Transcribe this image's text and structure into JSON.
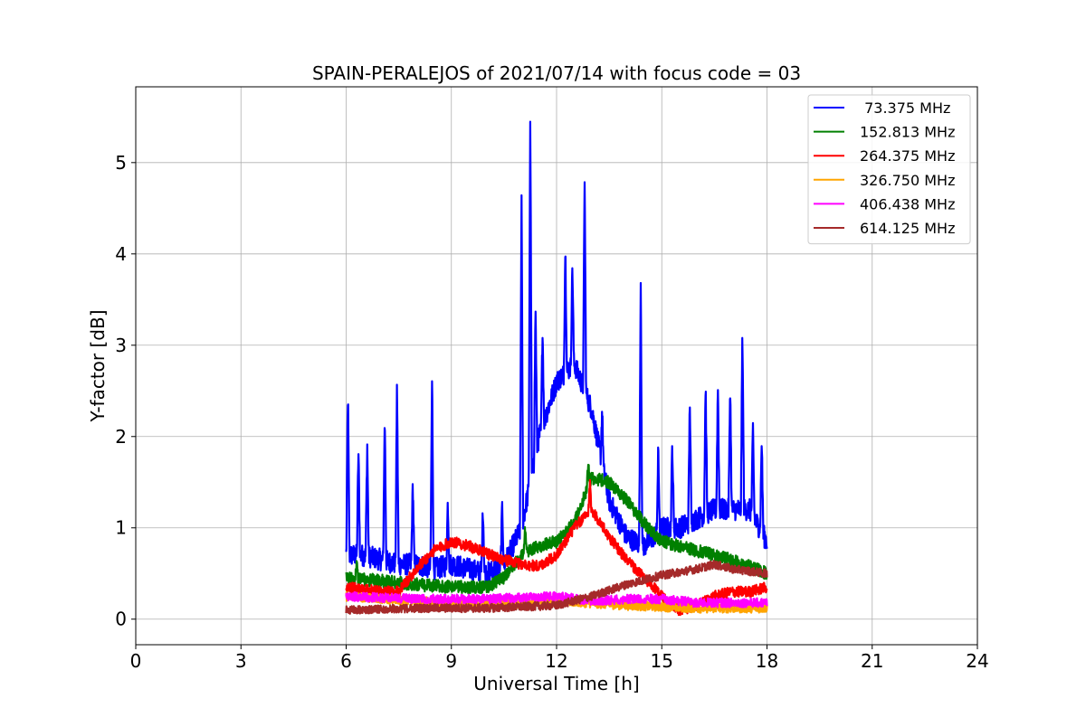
{
  "chart_data": {
    "type": "line",
    "title": "SPAIN-PERALEJOS of 2021/07/14 with focus code = 03",
    "xlabel": "Universal Time [h]",
    "ylabel": "Y-factor [dB]",
    "xlim": [
      0,
      24
    ],
    "ylim": [
      -0.28,
      5.83
    ],
    "xticks": [
      0,
      3,
      6,
      9,
      12,
      15,
      18,
      21,
      24
    ],
    "yticks": [
      0,
      1,
      2,
      3,
      4,
      5
    ],
    "grid": true,
    "legend_position": "top-right",
    "series": [
      {
        "name": " 73.375 MHz",
        "color": "#0000ff",
        "noise": 0.12,
        "x": [
          6.0,
          6.5,
          7.0,
          7.5,
          8.0,
          8.5,
          9.0,
          9.5,
          10.0,
          10.5,
          11.0,
          11.5,
          12.0,
          12.5,
          13.0,
          13.5,
          14.0,
          14.5,
          15.0,
          15.5,
          16.0,
          16.5,
          17.0,
          17.5,
          18.0
        ],
        "y": [
          0.7,
          0.7,
          0.65,
          0.6,
          0.6,
          0.55,
          0.6,
          0.55,
          0.5,
          0.6,
          1.0,
          2.0,
          2.6,
          2.8,
          2.3,
          1.3,
          0.9,
          0.8,
          1.0,
          1.0,
          1.1,
          1.2,
          1.2,
          1.2,
          0.85
        ],
        "spikes": [
          [
            6.05,
            2.5
          ],
          [
            6.35,
            1.85
          ],
          [
            6.6,
            1.9
          ],
          [
            7.1,
            2.25
          ],
          [
            7.45,
            2.6
          ],
          [
            7.9,
            1.5
          ],
          [
            8.45,
            2.65
          ],
          [
            8.9,
            1.3
          ],
          [
            9.9,
            1.25
          ],
          [
            10.45,
            1.25
          ],
          [
            11.0,
            4.6
          ],
          [
            11.25,
            5.55
          ],
          [
            11.4,
            3.4
          ],
          [
            11.6,
            3.2
          ],
          [
            12.25,
            4.1
          ],
          [
            12.45,
            3.9
          ],
          [
            12.8,
            4.85
          ],
          [
            13.3,
            2.3
          ],
          [
            14.4,
            3.8
          ],
          [
            14.9,
            1.85
          ],
          [
            15.3,
            1.95
          ],
          [
            15.8,
            2.4
          ],
          [
            16.25,
            2.6
          ],
          [
            16.6,
            2.55
          ],
          [
            16.95,
            2.6
          ],
          [
            17.3,
            3.2
          ],
          [
            17.6,
            2.1
          ],
          [
            17.85,
            2.0
          ]
        ]
      },
      {
        "name": "152.813 MHz",
        "color": "#008000",
        "noise": 0.07,
        "x": [
          6.0,
          7.0,
          8.0,
          9.0,
          10.0,
          10.5,
          11.0,
          11.5,
          12.0,
          12.5,
          13.0,
          13.5,
          14.0,
          14.5,
          15.0,
          16.0,
          17.0,
          18.0
        ],
        "y": [
          0.45,
          0.42,
          0.38,
          0.35,
          0.35,
          0.45,
          0.7,
          0.8,
          0.85,
          1.05,
          1.55,
          1.5,
          1.3,
          1.05,
          0.85,
          0.75,
          0.65,
          0.5
        ],
        "spikes": [
          [
            6.3,
            0.62
          ],
          [
            11.1,
            1.0
          ],
          [
            12.9,
            1.72
          ]
        ]
      },
      {
        "name": "264.375 MHz",
        "color": "#ff0000",
        "noise": 0.06,
        "x": [
          6.0,
          7.0,
          7.5,
          8.0,
          8.5,
          9.0,
          9.5,
          10.0,
          10.5,
          11.0,
          11.5,
          12.0,
          12.5,
          13.0,
          13.5,
          14.0,
          14.5,
          15.0,
          15.5,
          16.0,
          16.5,
          17.0,
          17.5,
          18.0
        ],
        "y": [
          0.35,
          0.3,
          0.3,
          0.55,
          0.75,
          0.85,
          0.8,
          0.72,
          0.65,
          0.6,
          0.58,
          0.7,
          1.0,
          1.2,
          0.9,
          0.65,
          0.45,
          0.25,
          0.1,
          0.15,
          0.25,
          0.3,
          0.3,
          0.35
        ],
        "spikes": [
          [
            12.95,
            1.5
          ]
        ]
      },
      {
        "name": "326.750 MHz",
        "color": "#ffa500",
        "noise": 0.05,
        "x": [
          6.0,
          8.0,
          10.0,
          12.0,
          14.0,
          16.0,
          18.0
        ],
        "y": [
          0.25,
          0.2,
          0.15,
          0.2,
          0.15,
          0.12,
          0.12
        ],
        "spikes": []
      },
      {
        "name": "406.438 MHz",
        "color": "#ff00ff",
        "noise": 0.05,
        "x": [
          6.0,
          8.0,
          10.0,
          12.0,
          13.0,
          14.0,
          15.0,
          16.0,
          17.0,
          18.0
        ],
        "y": [
          0.25,
          0.22,
          0.22,
          0.25,
          0.2,
          0.22,
          0.22,
          0.18,
          0.18,
          0.18
        ],
        "spikes": []
      },
      {
        "name": "614.125 MHz",
        "color": "#a52a2a",
        "noise": 0.045,
        "x": [
          6.0,
          8.0,
          10.0,
          12.0,
          13.0,
          14.0,
          15.0,
          16.0,
          16.5,
          17.0,
          18.0
        ],
        "y": [
          0.1,
          0.12,
          0.12,
          0.15,
          0.25,
          0.38,
          0.48,
          0.55,
          0.6,
          0.55,
          0.5
        ],
        "spikes": []
      }
    ]
  }
}
